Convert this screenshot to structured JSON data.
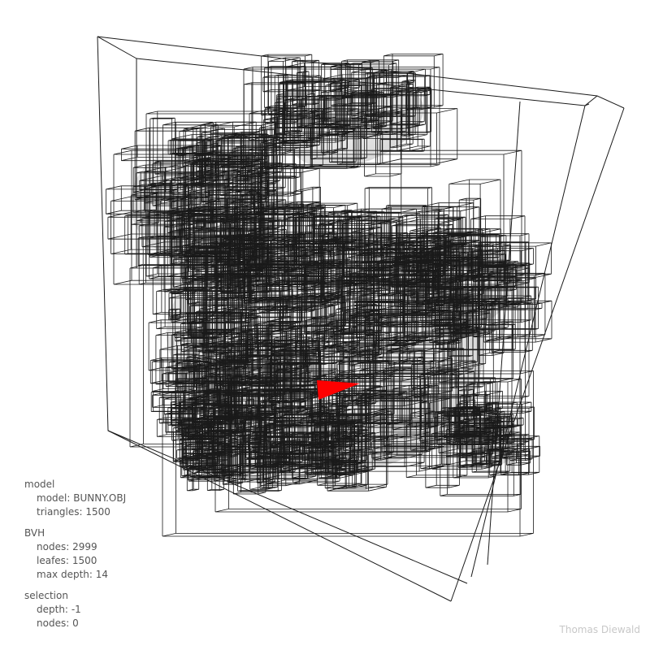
{
  "info": {
    "model": {
      "heading": "model",
      "name_label": "model:",
      "name_value": "BUNNY.OBJ",
      "triangles_label": "triangles:",
      "triangles_value": "1500"
    },
    "bvh": {
      "heading": "BVH",
      "nodes_label": "nodes:",
      "nodes_value": "2999",
      "leafes_label": "leafes:",
      "leafes_value": "1500",
      "max_depth_label": "max depth:",
      "max_depth_value": "14"
    },
    "selection": {
      "heading": "selection",
      "depth_label": "depth:",
      "depth_value": "-1",
      "nodes_label": "nodes:",
      "nodes_value": "0"
    }
  },
  "credit": "Thomas Diewald",
  "colors": {
    "background": "#ffffff",
    "wireframe": "#1a1a1a",
    "selected_triangle": "#ff0000",
    "info_text": "#555555",
    "credit_text": "#c8c8c8"
  }
}
